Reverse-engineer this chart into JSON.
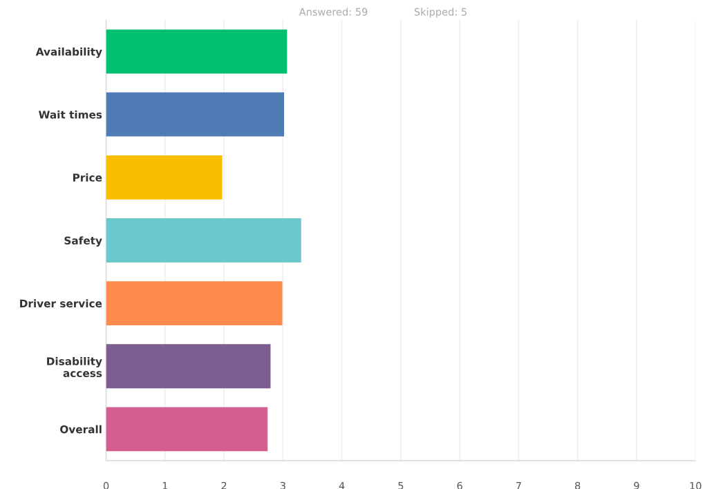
{
  "chart_data": {
    "type": "bar",
    "orientation": "horizontal",
    "categories": [
      "Availability",
      "Wait times",
      "Price",
      "Safety",
      "Driver service",
      "Disability\naccess",
      "Overall"
    ],
    "values": [
      3.07,
      3.02,
      1.97,
      3.31,
      2.99,
      2.79,
      2.74
    ],
    "colors": [
      "#00bf6f",
      "#507cb6",
      "#f9be00",
      "#6bc8cd",
      "#ff8b4f",
      "#7d5e90",
      "#d25f90"
    ],
    "xlim": [
      0,
      10
    ],
    "xticks": [
      0,
      1,
      2,
      3,
      4,
      5,
      6,
      7,
      8,
      9,
      10
    ],
    "grid": "x",
    "annotations": [
      "Answered: 59",
      "Skipped: 5"
    ]
  }
}
